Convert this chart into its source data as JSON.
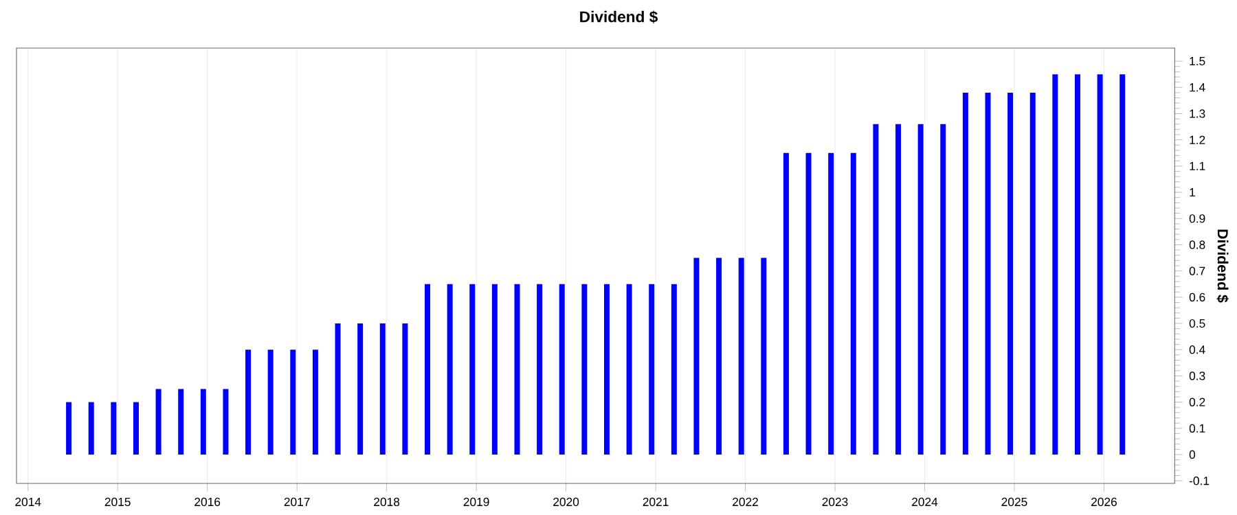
{
  "chart_data": {
    "type": "bar",
    "title": "Dividend $",
    "y2label": "Dividend $",
    "x": [
      "2014-06",
      "2014-09",
      "2014-12",
      "2015-03",
      "2015-06",
      "2015-09",
      "2015-12",
      "2016-03",
      "2016-06",
      "2016-09",
      "2016-12",
      "2017-03",
      "2017-06",
      "2017-09",
      "2017-12",
      "2018-03",
      "2018-06",
      "2018-09",
      "2018-12",
      "2019-03",
      "2019-06",
      "2019-09",
      "2019-12",
      "2020-03",
      "2020-06",
      "2020-09",
      "2020-12",
      "2021-03",
      "2021-06",
      "2021-09",
      "2021-12",
      "2022-03",
      "2022-06",
      "2022-09",
      "2022-12",
      "2023-03",
      "2023-06",
      "2023-09",
      "2023-12",
      "2024-03",
      "2024-06",
      "2024-09",
      "2024-12",
      "2025-03",
      "2025-06",
      "2025-09",
      "2025-12",
      "2026-03"
    ],
    "series": [
      {
        "color": "#0000ff",
        "axis": "y2",
        "values": [
          0.2,
          0.2,
          0.2,
          0.2,
          0.25,
          0.25,
          0.25,
          0.25,
          0.4,
          0.4,
          0.4,
          0.4,
          0.5,
          0.5,
          0.5,
          0.5,
          0.65,
          0.65,
          0.65,
          0.65,
          0.65,
          0.65,
          0.65,
          0.65,
          0.65,
          0.65,
          0.65,
          0.65,
          0.75,
          0.75,
          0.75,
          0.75,
          1.15,
          1.15,
          1.15,
          1.15,
          1.26,
          1.26,
          1.26,
          1.26,
          1.38,
          1.38,
          1.38,
          1.38,
          1.45,
          1.45,
          1.45,
          1.45
        ]
      }
    ],
    "xlim": [
      "2013-11",
      "2026-10"
    ],
    "xticks": [
      "2014",
      "2015",
      "2016",
      "2017",
      "2018",
      "2019",
      "2020",
      "2021",
      "2022",
      "2023",
      "2024",
      "2025",
      "2026"
    ],
    "y2lim": [
      -0.11,
      1.55
    ],
    "y2ticks": [
      -0.1,
      0,
      0.1,
      0.2,
      0.3,
      0.4,
      0.5,
      0.6,
      0.7,
      0.8,
      0.9,
      1,
      1.1,
      1.2,
      1.3,
      1.4,
      1.5
    ],
    "grid": "x"
  }
}
